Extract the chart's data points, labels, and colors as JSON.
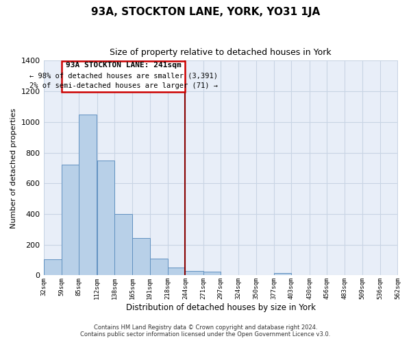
{
  "title": "93A, STOCKTON LANE, YORK, YO31 1JA",
  "subtitle": "Size of property relative to detached houses in York",
  "xlabel": "Distribution of detached houses by size in York",
  "ylabel": "Number of detached properties",
  "bar_color": "#b8d0e8",
  "bar_edge_color": "#6090c0",
  "plot_bg_color": "#e8eef8",
  "fig_bg_color": "#ffffff",
  "grid_color": "#c8d4e4",
  "annotation_box_color": "#cc0000",
  "vline_color": "#880000",
  "vline_x": 244,
  "bin_edges": [
    32,
    59,
    85,
    112,
    138,
    165,
    191,
    218,
    244,
    271,
    297,
    324,
    350,
    377,
    403,
    430,
    456,
    483,
    509,
    536,
    562
  ],
  "bar_heights": [
    105,
    720,
    1050,
    750,
    400,
    245,
    110,
    50,
    30,
    25,
    0,
    0,
    0,
    15,
    0,
    0,
    0,
    0,
    0,
    0
  ],
  "tick_labels": [
    "32sqm",
    "59sqm",
    "85sqm",
    "112sqm",
    "138sqm",
    "165sqm",
    "191sqm",
    "218sqm",
    "244sqm",
    "271sqm",
    "297sqm",
    "324sqm",
    "350sqm",
    "377sqm",
    "403sqm",
    "430sqm",
    "456sqm",
    "483sqm",
    "509sqm",
    "536sqm",
    "562sqm"
  ],
  "ylim": [
    0,
    1400
  ],
  "yticks": [
    0,
    200,
    400,
    600,
    800,
    1000,
    1200,
    1400
  ],
  "annotation_title": "93A STOCKTON LANE: 241sqm",
  "annotation_line1": "← 98% of detached houses are smaller (3,391)",
  "annotation_line2": "2% of semi-detached houses are larger (71) →",
  "footer_line1": "Contains HM Land Registry data © Crown copyright and database right 2024.",
  "footer_line2": "Contains public sector information licensed under the Open Government Licence v3.0."
}
